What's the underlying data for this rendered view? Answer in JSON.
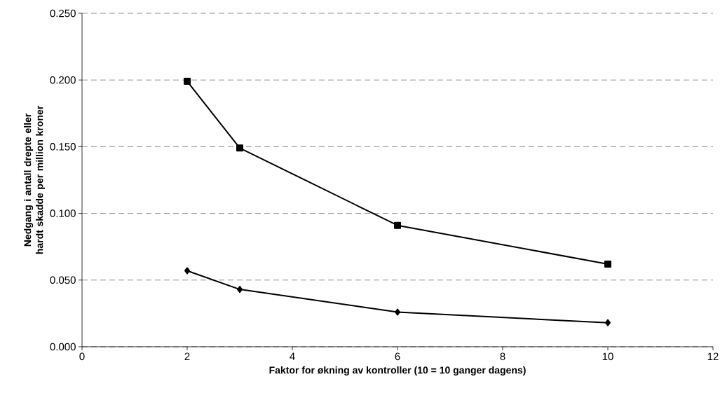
{
  "chart_data": {
    "type": "line",
    "xlabel": "Faktor for økning av kontroller (10 = 10 ganger dagens)",
    "ylabel": "Nedgang i antall drepte eller hardt skadde per million kroner",
    "x": [
      2,
      3,
      6,
      10
    ],
    "series": [
      {
        "color": "#000000",
        "marker": "square",
        "values": [
          0.199,
          0.149,
          0.091,
          0.062
        ]
      },
      {
        "color": "#000000",
        "marker": "diamond",
        "values": [
          0.057,
          0.043,
          0.026,
          0.018
        ]
      }
    ],
    "xlim": [
      0,
      12
    ],
    "xticks": [
      0,
      2,
      4,
      6,
      8,
      10,
      12
    ],
    "ylim": [
      0,
      0.25
    ],
    "yticks": [
      {
        "value": 0,
        "label": "0.000"
      },
      {
        "value": 0.05,
        "label": "0.050"
      },
      {
        "value": 0.1,
        "label": "0.100"
      },
      {
        "value": 0.15,
        "label": "0.150"
      },
      {
        "value": 0.2,
        "label": "0.200"
      },
      {
        "value": 0.25,
        "label": "0.250"
      }
    ],
    "grid": "y",
    "line_style": "solid"
  }
}
